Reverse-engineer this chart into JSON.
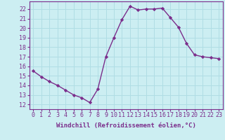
{
  "x": [
    0,
    1,
    2,
    3,
    4,
    5,
    6,
    7,
    8,
    9,
    10,
    11,
    12,
    13,
    14,
    15,
    16,
    17,
    18,
    19,
    20,
    21,
    22,
    23
  ],
  "y": [
    15.5,
    14.9,
    14.4,
    14.0,
    13.5,
    13.0,
    12.7,
    12.2,
    13.6,
    17.0,
    19.0,
    20.9,
    22.3,
    21.9,
    22.0,
    22.0,
    22.1,
    21.1,
    20.1,
    18.4,
    17.2,
    17.0,
    16.9,
    16.8
  ],
  "line_color": "#7B2D8B",
  "marker": "D",
  "marker_size": 2.2,
  "bg_color": "#cceef2",
  "grid_color": "#b0dde4",
  "xlabel": "Windchill (Refroidissement éolien,°C)",
  "xlim": [
    -0.5,
    23.5
  ],
  "ylim": [
    11.5,
    22.8
  ],
  "yticks": [
    12,
    13,
    14,
    15,
    16,
    17,
    18,
    19,
    20,
    21,
    22
  ],
  "xticks": [
    0,
    1,
    2,
    3,
    4,
    5,
    6,
    7,
    8,
    9,
    10,
    11,
    12,
    13,
    14,
    15,
    16,
    17,
    18,
    19,
    20,
    21,
    22,
    23
  ],
  "xlabel_fontsize": 6.5,
  "tick_fontsize": 6.0,
  "line_width": 1.0
}
